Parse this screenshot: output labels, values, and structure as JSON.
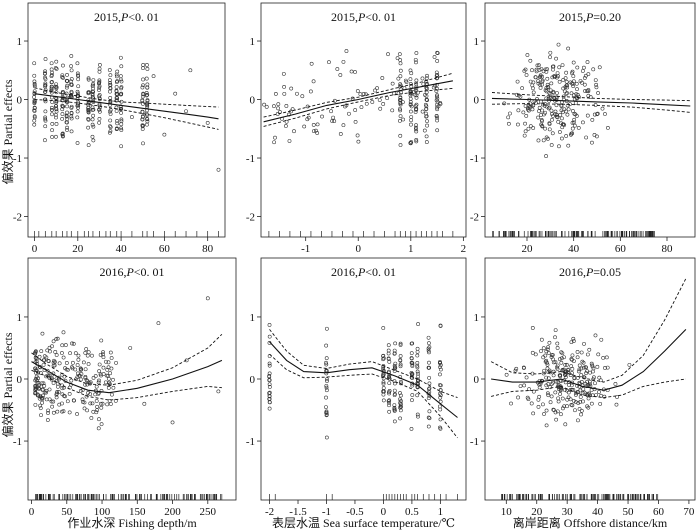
{
  "figure": {
    "ylabel": "偏效果 Partial effects"
  },
  "chart_data": [
    {
      "id": "p2015_depth",
      "type": "scatter",
      "title": "2015,P<0. 01",
      "year": "2015",
      "p_label": "P",
      "p_rel": "<0. 01",
      "xlabel": "",
      "xlim": [
        -3,
        88
      ],
      "ylim": [
        -2.35,
        1.65
      ],
      "xticks": [
        0,
        20,
        40,
        60,
        80
      ],
      "yticks": [
        -2,
        -1,
        0,
        1
      ],
      "fit": {
        "x": [
          0,
          10,
          20,
          30,
          40,
          50,
          60,
          70,
          80,
          85
        ],
        "y": [
          0.1,
          0.05,
          0.0,
          -0.05,
          -0.1,
          -0.15,
          -0.2,
          -0.25,
          -0.3,
          -0.33
        ]
      },
      "ci_upper": {
        "x": [
          0,
          10,
          20,
          30,
          40,
          50,
          60,
          70,
          80,
          85
        ],
        "y": [
          0.2,
          0.12,
          0.06,
          0.0,
          -0.04,
          -0.06,
          -0.08,
          -0.1,
          -0.12,
          -0.13
        ]
      },
      "ci_lower": {
        "x": [
          0,
          10,
          20,
          30,
          40,
          50,
          60,
          70,
          80,
          85
        ],
        "y": [
          0.0,
          -0.02,
          -0.06,
          -0.11,
          -0.17,
          -0.24,
          -0.31,
          -0.39,
          -0.47,
          -0.51
        ]
      },
      "points": {
        "x_columns": [
          0,
          5,
          8,
          10,
          13,
          15,
          17,
          20,
          25,
          27,
          30,
          35,
          38,
          40,
          50,
          52
        ],
        "y_range": [
          -1.5,
          1.4
        ],
        "scatter_x": [
          45,
          55,
          60,
          65,
          70,
          72,
          80,
          85
        ],
        "scatter_y": [
          -0.3,
          0.4,
          -0.6,
          0.1,
          -0.2,
          0.5,
          -0.4,
          -1.2
        ]
      },
      "rug": [
        0,
        2,
        5,
        8,
        10,
        13,
        15,
        17,
        20,
        23,
        25,
        27,
        30,
        33,
        35,
        38,
        40,
        45,
        50,
        52,
        55,
        60,
        65,
        70,
        75,
        80,
        85
      ]
    },
    {
      "id": "p2015_sst",
      "type": "scatter",
      "title": "2015,P<0. 01",
      "year": "2015",
      "p_label": "P",
      "p_rel": "<0. 01",
      "xlabel": "",
      "xlim": [
        -1.85,
        2.05
      ],
      "ylim": [
        -2.35,
        1.65
      ],
      "xticks": [
        -1,
        0,
        1,
        2
      ],
      "yticks": [
        -2,
        -1,
        0,
        1
      ],
      "fit": {
        "x": [
          -1.8,
          -1.2,
          -0.6,
          0,
          0.6,
          1.2,
          1.8
        ],
        "y": [
          -0.38,
          -0.25,
          -0.1,
          0.0,
          0.12,
          0.22,
          0.32
        ]
      },
      "ci_upper": {
        "x": [
          -1.8,
          -1.2,
          -0.6,
          0,
          0.6,
          1.2,
          1.8
        ],
        "y": [
          -0.3,
          -0.18,
          -0.05,
          0.04,
          0.17,
          0.3,
          0.45
        ]
      },
      "ci_lower": {
        "x": [
          -1.8,
          -1.2,
          -0.6,
          0,
          0.6,
          1.2,
          1.8
        ],
        "y": [
          -0.46,
          -0.32,
          -0.16,
          -0.04,
          0.07,
          0.14,
          0.19
        ]
      },
      "points": {
        "x_columns": [
          0.8,
          1.0,
          1.1,
          1.3,
          1.5
        ],
        "y_range": [
          -1.7,
          1.5
        ],
        "scatter_x_range": [
          -1.8,
          1.6
        ],
        "scatter_y_range": [
          -1.8,
          1.3
        ]
      },
      "rug": [
        -1.7,
        -1.5,
        -1.3,
        -1.1,
        -0.9,
        -0.7,
        -0.5,
        -0.3,
        -0.1,
        0.1,
        0.3,
        0.5,
        0.7,
        0.8,
        0.9,
        1.0,
        1.1,
        1.2,
        1.3,
        1.4,
        1.5,
        1.6,
        1.8
      ]
    },
    {
      "id": "p2015_offshore",
      "type": "scatter",
      "title": "2015,P=0.20",
      "year": "2015",
      "p_label": "P",
      "p_rel": "=0.20",
      "xlabel": "",
      "xlim": [
        2,
        92
      ],
      "ylim": [
        -2.35,
        1.65
      ],
      "xticks": [
        20,
        40,
        60,
        80
      ],
      "yticks": [
        -2,
        -1,
        0,
        1
      ],
      "fit": {
        "x": [
          5,
          20,
          35,
          50,
          65,
          80,
          90
        ],
        "y": [
          0.02,
          0.0,
          -0.02,
          -0.04,
          -0.06,
          -0.09,
          -0.11
        ]
      },
      "ci_upper": {
        "x": [
          5,
          20,
          35,
          50,
          65,
          80,
          90
        ],
        "y": [
          0.12,
          0.08,
          0.05,
          0.02,
          0.0,
          -0.01,
          -0.02
        ]
      },
      "ci_lower": {
        "x": [
          5,
          20,
          35,
          50,
          65,
          80,
          90
        ],
        "y": [
          -0.08,
          -0.07,
          -0.08,
          -0.1,
          -0.13,
          -0.18,
          -0.22
        ]
      },
      "points": {
        "x_range": [
          10,
          80
        ],
        "x_center": 32,
        "y_range": [
          -2.1,
          1.5
        ]
      },
      "rug_range": [
        5,
        75
      ]
    },
    {
      "id": "p2016_depth",
      "type": "scatter",
      "title": "2016,P<0. 01",
      "year": "2016",
      "p_label": "P",
      "p_rel": "<0. 01",
      "xlabel": "作业水深 Fishing depth/m",
      "xlim": [
        -5,
        290
      ],
      "ylim": [
        -1.95,
        1.95
      ],
      "xticks": [
        0,
        50,
        100,
        150,
        200,
        250
      ],
      "yticks": [
        -1,
        0,
        1
      ],
      "fit": {
        "x": [
          0,
          20,
          50,
          80,
          110,
          150,
          200,
          250,
          270
        ],
        "y": [
          0.28,
          0.15,
          -0.05,
          -0.18,
          -0.22,
          -0.15,
          0.0,
          0.2,
          0.3
        ]
      },
      "ci_upper": {
        "x": [
          0,
          20,
          50,
          80,
          110,
          150,
          200,
          250,
          270
        ],
        "y": [
          0.42,
          0.25,
          0.04,
          -0.08,
          -0.1,
          -0.02,
          0.18,
          0.5,
          0.72
        ]
      },
      "ci_lower": {
        "x": [
          0,
          20,
          50,
          80,
          110,
          150,
          200,
          250,
          270
        ],
        "y": [
          0.14,
          0.05,
          -0.14,
          -0.28,
          -0.34,
          -0.3,
          -0.2,
          -0.12,
          -0.14
        ]
      },
      "points": {
        "x_range": [
          5,
          120
        ],
        "y_range": [
          -1.8,
          1.6
        ],
        "scatter_x": [
          140,
          160,
          180,
          200,
          220,
          250,
          265
        ],
        "scatter_y": [
          0.5,
          -0.4,
          0.9,
          -0.7,
          0.3,
          1.3,
          -0.2
        ]
      },
      "rug_range": [
        5,
        270
      ]
    },
    {
      "id": "p2016_sst",
      "type": "scatter",
      "title": "2016,P<0. 01",
      "year": "2016",
      "p_label": "P",
      "p_rel": "<0. 01",
      "xlabel": "表层水温 Sea surface temperature/℃",
      "xlim": [
        -2.15,
        1.45
      ],
      "ylim": [
        -1.95,
        1.95
      ],
      "xticks": [
        -2.0,
        -1.5,
        -1.0,
        -0.5,
        0.0,
        0.5,
        1.0
      ],
      "yticks": [
        -1,
        0,
        1
      ],
      "fit": {
        "x": [
          -2.0,
          -1.7,
          -1.4,
          -1.0,
          -0.6,
          -0.2,
          0.2,
          0.6,
          1.0,
          1.3
        ],
        "y": [
          0.6,
          0.3,
          0.12,
          0.1,
          0.15,
          0.18,
          0.05,
          -0.1,
          -0.4,
          -0.62
        ]
      },
      "ci_upper": {
        "x": [
          -2.0,
          -1.7,
          -1.4,
          -1.0,
          -0.6,
          -0.2,
          0.2,
          0.6,
          1.0,
          1.3
        ],
        "y": [
          0.8,
          0.45,
          0.22,
          0.17,
          0.24,
          0.28,
          0.14,
          0.0,
          -0.2,
          -0.3
        ]
      },
      "ci_lower": {
        "x": [
          -2.0,
          -1.7,
          -1.4,
          -1.0,
          -0.6,
          -0.2,
          0.2,
          0.6,
          1.0,
          1.3
        ],
        "y": [
          0.4,
          0.15,
          0.02,
          0.03,
          0.06,
          0.08,
          -0.04,
          -0.2,
          -0.6,
          -0.95
        ]
      },
      "points": {
        "x_columns": [
          -2.0,
          -1.0,
          0.0,
          0.1,
          0.2,
          0.3,
          0.5,
          0.6,
          0.8,
          1.0
        ],
        "y_range": [
          -1.6,
          1.8
        ]
      },
      "rug": [
        -2.0,
        -1.9,
        -1.0,
        -0.9,
        0.0,
        0.05,
        0.1,
        0.15,
        0.2,
        0.25,
        0.3,
        0.35,
        0.4,
        0.5,
        0.55,
        0.6,
        0.7,
        0.8,
        0.9,
        1.0,
        1.1,
        1.3
      ]
    },
    {
      "id": "p2016_offshore",
      "type": "scatter",
      "title": "2016,P=0.05",
      "year": "2016",
      "p_label": "P",
      "p_rel": "=0.05",
      "xlabel": "离岸距离 Offshore distance/km",
      "xlim": [
        3,
        72
      ],
      "ylim": [
        -1.95,
        1.95
      ],
      "xticks": [
        10,
        20,
        30,
        40,
        50,
        60,
        70
      ],
      "yticks": [
        -1,
        0,
        1
      ],
      "fit": {
        "x": [
          5,
          12,
          20,
          28,
          35,
          42,
          48,
          55,
          62,
          69
        ],
        "y": [
          0.0,
          -0.05,
          -0.05,
          0.0,
          -0.12,
          -0.18,
          -0.1,
          0.12,
          0.45,
          0.8
        ]
      },
      "ci_upper": {
        "x": [
          5,
          12,
          20,
          28,
          35,
          42,
          48,
          55,
          62,
          69
        ],
        "y": [
          0.28,
          0.1,
          0.08,
          0.12,
          0.02,
          -0.05,
          0.06,
          0.38,
          0.95,
          1.62
        ]
      },
      "ci_lower": {
        "x": [
          5,
          12,
          20,
          28,
          35,
          42,
          48,
          55,
          62,
          69
        ],
        "y": [
          -0.28,
          -0.2,
          -0.18,
          -0.12,
          -0.26,
          -0.3,
          -0.26,
          -0.12,
          -0.05,
          0.0
        ]
      },
      "points": {
        "x_range": [
          8,
          65
        ],
        "x_center": 30,
        "y_range": [
          -1.6,
          1.45
        ]
      },
      "rug_range": [
        8,
        60
      ]
    }
  ]
}
